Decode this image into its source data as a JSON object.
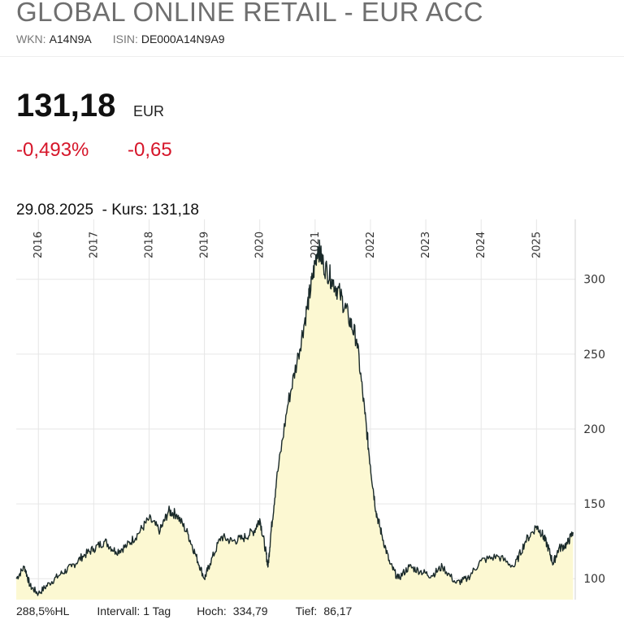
{
  "header": {
    "title": "GLOBAL ONLINE RETAIL - EUR ACC",
    "wkn_label": "WKN:",
    "wkn": "A14N9A",
    "isin_label": "ISIN:",
    "isin": "DE000A14N9A9"
  },
  "quote": {
    "price": "131,18",
    "currency": "EUR",
    "change_pct": "-0,493%",
    "change_abs": "-0,65",
    "change_color": "#d6162a"
  },
  "chart_info": {
    "date": "29.08.2025",
    "kurs_text": "- Kurs: 131,18"
  },
  "footer": {
    "range": "288,5%HL",
    "interval": "Intervall: 1 Tag",
    "high_label": "Hoch:",
    "high": "334,79",
    "low_label": "Tief:",
    "low": "86,17"
  },
  "chart_data": {
    "type": "area",
    "title": "",
    "xlabel": "",
    "ylabel": "",
    "fill_color": "#fcf8d2",
    "line_color": "#1a2a2a",
    "grid": true,
    "y_axis_position": "right",
    "x_tick_labels": [
      "2016",
      "2017",
      "2018",
      "2019",
      "2020",
      "2021",
      "2022",
      "2023",
      "2024",
      "2025"
    ],
    "y_ticks": [
      100,
      150,
      200,
      250,
      300
    ],
    "xlim": [
      2015.6,
      2025.7
    ],
    "ylim": [
      86,
      340
    ],
    "series": [
      {
        "x": [
          2015.6,
          2015.75,
          2015.85,
          2016.0,
          2016.2,
          2016.4,
          2016.6,
          2016.8,
          2017.0,
          2017.2,
          2017.4,
          2017.6,
          2017.8,
          2018.0,
          2018.2,
          2018.35,
          2018.5,
          2018.7,
          2018.85,
          2019.0,
          2019.1,
          2019.3,
          2019.5,
          2019.7,
          2019.9,
          2020.0,
          2020.1,
          2020.15,
          2020.2,
          2020.3,
          2020.5,
          2020.7,
          2020.85,
          2020.95,
          2021.05,
          2021.15,
          2021.3,
          2021.45,
          2021.6,
          2021.75,
          2021.9,
          2022.0,
          2022.1,
          2022.2,
          2022.35,
          2022.5,
          2022.7,
          2022.9,
          2023.1,
          2023.3,
          2023.55,
          2023.75,
          2024.0,
          2024.3,
          2024.6,
          2024.8,
          2025.0,
          2025.1,
          2025.2,
          2025.3,
          2025.4,
          2025.55,
          2025.66
        ],
        "y": [
          100,
          108,
          95,
          90,
          97,
          103,
          108,
          115,
          120,
          125,
          118,
          122,
          130,
          140,
          132,
          145,
          143,
          130,
          115,
          100,
          110,
          128,
          125,
          127,
          132,
          140,
          120,
          108,
          130,
          165,
          215,
          250,
          280,
          300,
          322,
          310,
          300,
          290,
          275,
          260,
          210,
          175,
          145,
          130,
          110,
          100,
          108,
          105,
          102,
          108,
          97,
          100,
          112,
          115,
          108,
          125,
          135,
          130,
          122,
          110,
          120,
          123,
          131
        ]
      }
    ]
  }
}
